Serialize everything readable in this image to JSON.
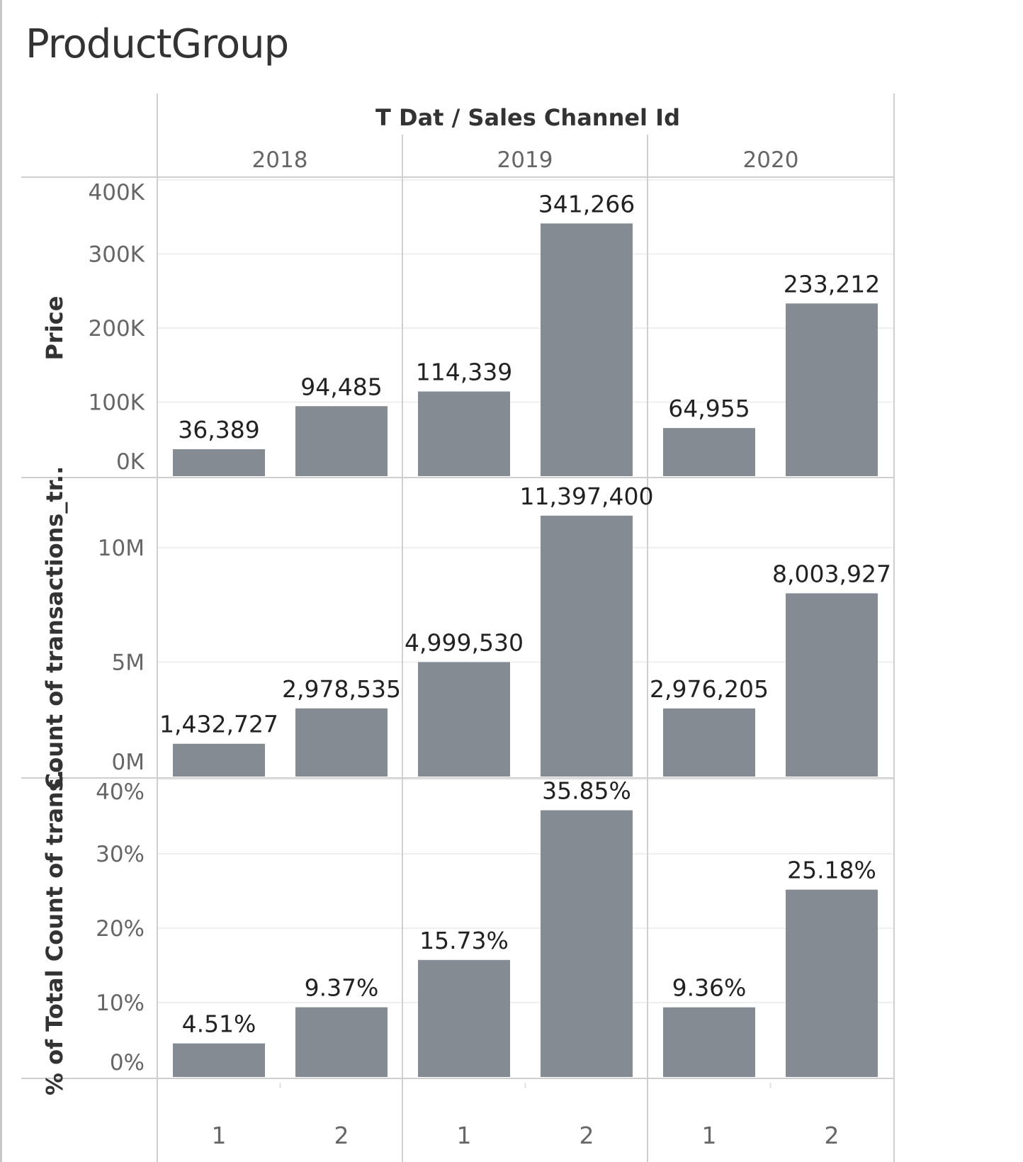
{
  "title": "ProductGroup",
  "chart_data": {
    "type": "bar",
    "column_header": "T Dat  /  Sales Channel Id",
    "groups": [
      "2018",
      "2019",
      "2020"
    ],
    "categories": [
      "1",
      "2"
    ],
    "colors": {
      "bar": "#848b92",
      "grid": "#efefef",
      "border": "#cfcfcf"
    },
    "panels": [
      {
        "name": "Price",
        "ylabel": "Price",
        "ylim": [
          0,
          400000
        ],
        "ticks": [
          {
            "v": 0,
            "t": "0K"
          },
          {
            "v": 100000,
            "t": "100K"
          },
          {
            "v": 200000,
            "t": "200K"
          },
          {
            "v": 300000,
            "t": "300K"
          },
          {
            "v": 400000,
            "t": "400K"
          }
        ],
        "values": [
          [
            36389,
            94485
          ],
          [
            114339,
            341266
          ],
          [
            64955,
            233212
          ]
        ],
        "labels": [
          [
            "36,389",
            "94,485"
          ],
          [
            "114,339",
            "341,266"
          ],
          [
            "64,955",
            "233,212"
          ]
        ]
      },
      {
        "name": "Count",
        "ylabel": "Count of transactions_tr..",
        "ylim": [
          0,
          13000000
        ],
        "ticks": [
          {
            "v": 0,
            "t": "0M"
          },
          {
            "v": 5000000,
            "t": "5M"
          },
          {
            "v": 10000000,
            "t": "10M"
          }
        ],
        "values": [
          [
            1432727,
            2978535
          ],
          [
            4999530,
            11397400
          ],
          [
            2976205,
            8003927
          ]
        ],
        "labels": [
          [
            "1,432,727",
            "2,978,535"
          ],
          [
            "4,999,530",
            "11,397,400"
          ],
          [
            "2,976,205",
            "8,003,927"
          ]
        ]
      },
      {
        "name": "Percent",
        "ylabel": "% of Total Count of trans..",
        "ylim": [
          0,
          40
        ],
        "ticks": [
          {
            "v": 0,
            "t": "0%"
          },
          {
            "v": 10,
            "t": "10%"
          },
          {
            "v": 20,
            "t": "20%"
          },
          {
            "v": 30,
            "t": "30%"
          },
          {
            "v": 40,
            "t": "40%"
          }
        ],
        "values": [
          [
            4.51,
            9.37
          ],
          [
            15.73,
            35.85
          ],
          [
            9.36,
            25.18
          ]
        ],
        "labels": [
          [
            "4.51%",
            "9.37%"
          ],
          [
            "15.73%",
            "35.85%"
          ],
          [
            "9.36%",
            "25.18%"
          ]
        ]
      }
    ]
  }
}
